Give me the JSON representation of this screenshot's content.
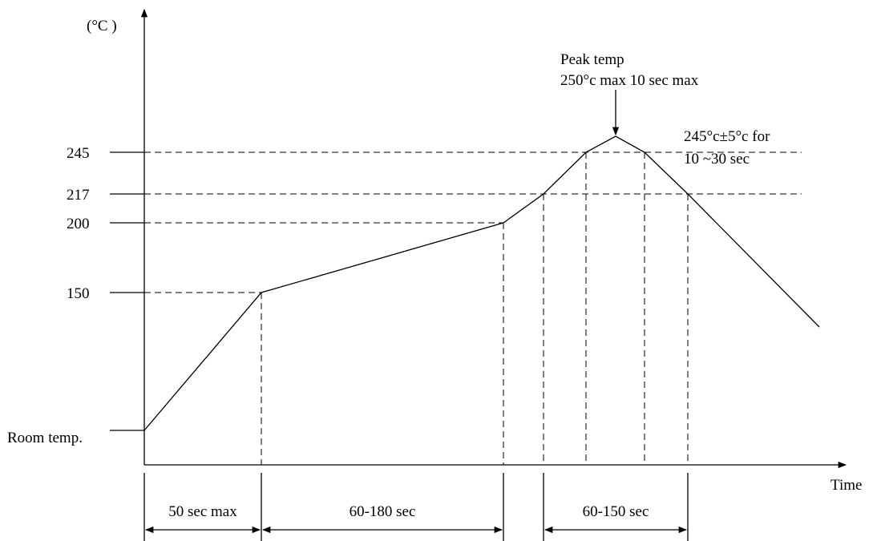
{
  "diagram": {
    "y_unit": "(°C )",
    "x_axis_label": "Time",
    "y_ticks": [
      "245",
      "217",
      "200",
      "150"
    ],
    "room_temp_label": "Room temp.",
    "peak_annotation": {
      "line1": "Peak temp",
      "line2": "250°c max 10 sec max"
    },
    "hold_annotation": {
      "line1": "245°c±5°c for",
      "line2": "10 ~30 sec"
    },
    "durations": [
      "50 sec max",
      "60-180  sec",
      "60-150  sec"
    ]
  },
  "chart_data": {
    "type": "line",
    "xlabel": "Time",
    "ylabel": "(°C )",
    "profile_points_celsius": [
      150,
      200,
      217,
      245,
      250,
      245,
      217
    ],
    "durations": [
      "50 sec max",
      "60-180  sec",
      "60-150  sec"
    ]
  }
}
